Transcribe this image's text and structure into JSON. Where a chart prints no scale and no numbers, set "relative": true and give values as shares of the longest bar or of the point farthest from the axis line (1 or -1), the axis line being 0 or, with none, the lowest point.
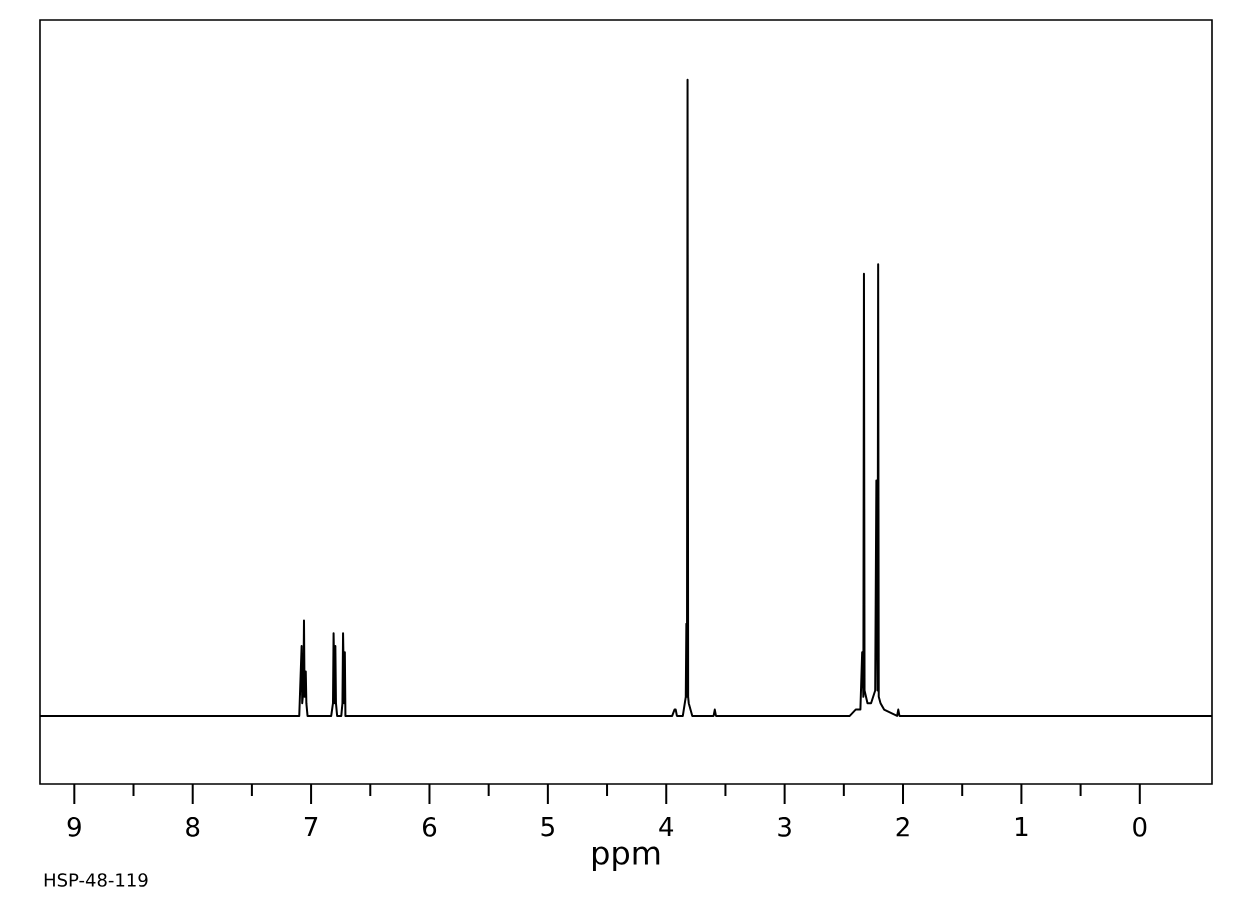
{
  "chart_data": {
    "type": "line",
    "relative": true,
    "xlabel": "ppm",
    "annotations": [
      "HSP-48-119"
    ],
    "xlim": [
      9.29,
      -0.61
    ],
    "xticks": [
      0,
      1,
      2,
      3,
      4,
      5,
      6,
      7,
      8,
      9
    ],
    "tick_labels": "x",
    "grid": false,
    "marker": "none",
    "line_style": "solid",
    "color": "#000000",
    "x": [
      9.29,
      7.1,
      7.08,
      7.075,
      7.065,
      7.06,
      7.055,
      7.045,
      7.04,
      7.03,
      6.83,
      6.815,
      6.81,
      6.8,
      6.795,
      6.79,
      6.78,
      6.745,
      6.735,
      6.73,
      6.72,
      6.715,
      6.71,
      6.69,
      3.95,
      3.93,
      3.92,
      3.91,
      3.86,
      3.835,
      3.83,
      3.825,
      3.82,
      3.815,
      3.81,
      3.78,
      3.6,
      3.59,
      3.58,
      2.45,
      2.4,
      2.36,
      2.345,
      2.335,
      2.33,
      2.325,
      2.3,
      2.27,
      2.235,
      2.225,
      2.215,
      2.21,
      2.205,
      2.19,
      2.16,
      2.05,
      2.04,
      2.03,
      -0.61
    ],
    "values": [
      0,
      0,
      0.11,
      0.02,
      0.04,
      0.15,
      0.03,
      0.07,
      0.02,
      0,
      0,
      0.02,
      0.13,
      0.02,
      0.11,
      0.02,
      0,
      0,
      0.02,
      0.13,
      0.02,
      0.1,
      0,
      0,
      0,
      0.01,
      0.01,
      0,
      0,
      0.03,
      0.145,
      0.03,
      1,
      0.03,
      0.02,
      0,
      0,
      0.01,
      0,
      0,
      0.01,
      0.01,
      0.1,
      0.03,
      0.695,
      0.04,
      0.02,
      0.02,
      0.04,
      0.37,
      0.04,
      0.71,
      0.03,
      0.02,
      0.01,
      0,
      0.01,
      0,
      0
    ]
  }
}
